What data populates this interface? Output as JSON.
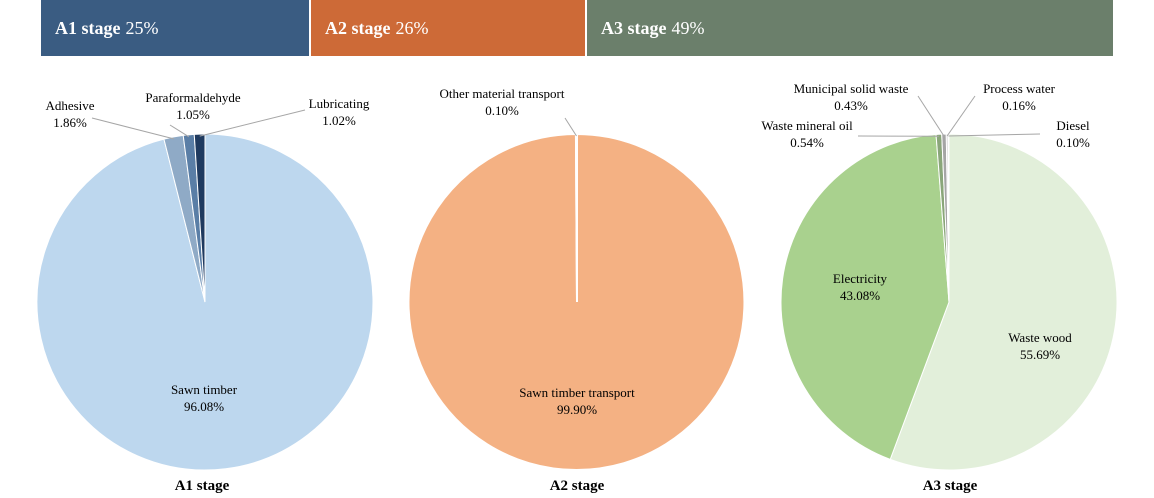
{
  "stage_bands": [
    {
      "label": "A1 stage",
      "share": "25%",
      "color": "#3a5c82"
    },
    {
      "label": "A2 stage",
      "share": "26%",
      "color": "#cd6a37"
    },
    {
      "label": "A3 stage",
      "share": "49%",
      "color": "#6b7f6b"
    }
  ],
  "chart_data": [
    {
      "type": "pie",
      "title": "A1 stage",
      "slices": [
        {
          "label": "Sawn timber",
          "value": 96.08,
          "value_text": "96.08%",
          "color": "#bdd7ee"
        },
        {
          "label": "Adhesive",
          "value": 1.86,
          "value_text": "1.86%",
          "color": "#8faac6"
        },
        {
          "label": "Paraformaldehyde",
          "value": 1.05,
          "value_text": "1.05%",
          "color": "#5a7ea6"
        },
        {
          "label": "Lubricating",
          "value": 1.02,
          "value_text": "1.02%",
          "color": "#1f3a5f"
        }
      ]
    },
    {
      "type": "pie",
      "title": "A2 stage",
      "slices": [
        {
          "label": "Sawn timber transport",
          "value": 99.9,
          "value_text": "99.90%",
          "color": "#f4b183"
        },
        {
          "label": "Other material transport",
          "value": 0.1,
          "value_text": "0.10%",
          "color": "#f4b183"
        }
      ]
    },
    {
      "type": "pie",
      "title": "A3 stage",
      "slices": [
        {
          "label": "Waste wood",
          "value": 55.69,
          "value_text": "55.69%",
          "color": "#e2efda"
        },
        {
          "label": "Electricity",
          "value": 43.08,
          "value_text": "43.08%",
          "color": "#a9d18e"
        },
        {
          "label": "Waste mineral oil",
          "value": 0.54,
          "value_text": "0.54%",
          "color": "#8aa67a"
        },
        {
          "label": "Municipal solid waste",
          "value": 0.43,
          "value_text": "0.43%",
          "color": "#a5a5a5"
        },
        {
          "label": "Process water",
          "value": 0.16,
          "value_text": "0.16%",
          "color": "#c9c9c9"
        },
        {
          "label": "Diesel",
          "value": 0.1,
          "value_text": "0.10%",
          "color": "#e2efda"
        }
      ]
    }
  ]
}
